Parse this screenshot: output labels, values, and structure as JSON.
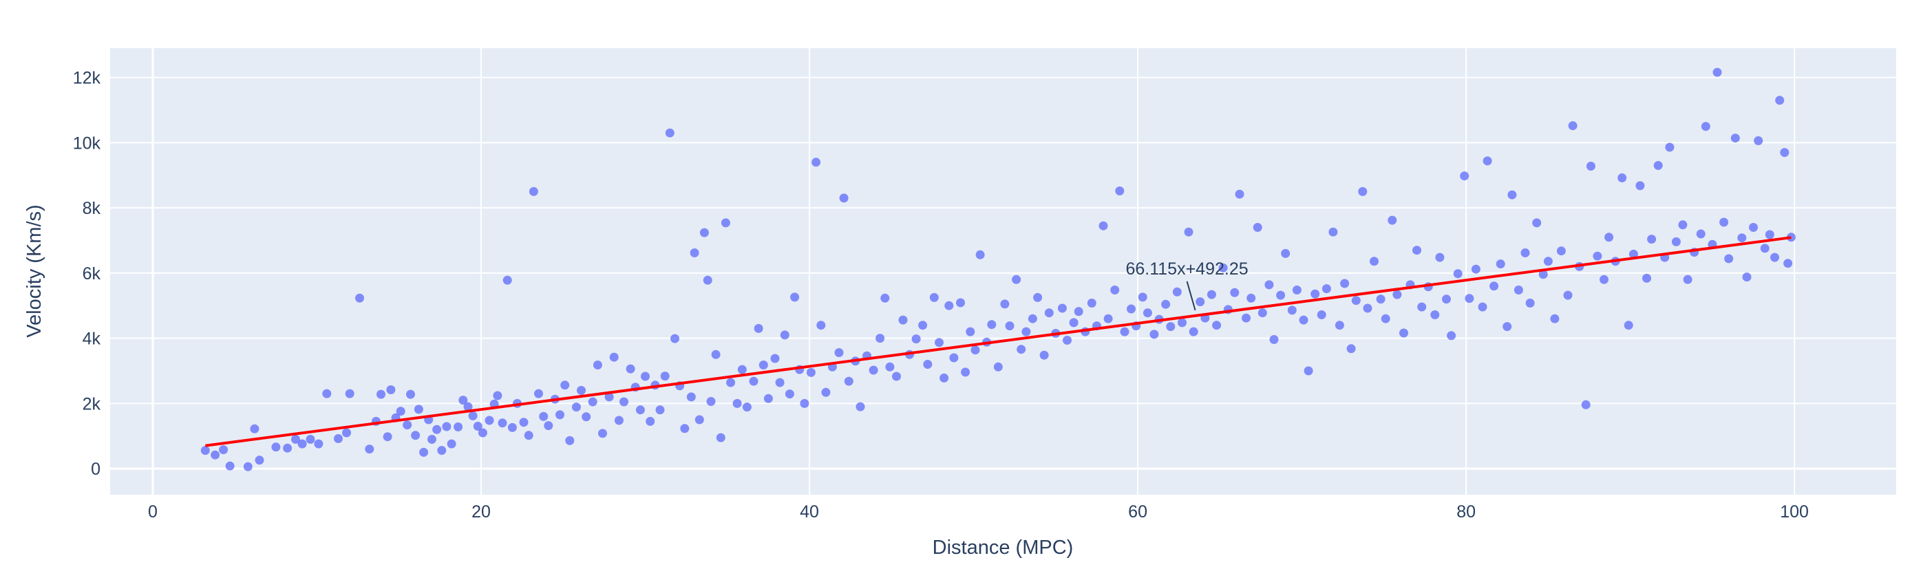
{
  "chart_data": {
    "type": "scatter",
    "title": "",
    "xlabel": "Distance (MPC)",
    "ylabel": "Velocity (Km/s)",
    "xlim": [
      -2.6,
      106.2
    ],
    "ylim": [
      -800,
      12900
    ],
    "xticks": [
      0,
      20,
      40,
      60,
      80,
      100
    ],
    "xtick_labels": [
      "0",
      "20",
      "40",
      "60",
      "80",
      "100"
    ],
    "yticks": [
      0,
      2000,
      4000,
      6000,
      8000,
      10000,
      12000
    ],
    "ytick_labels": [
      "0",
      "2k",
      "4k",
      "6k",
      "8k",
      "10k",
      "12k"
    ],
    "grid": true,
    "legend": "none",
    "colors": {
      "plot_bg": "#e5ecf6",
      "grid": "#ffffff",
      "marker": "#636efa",
      "fit_line": "#ff0000",
      "text": "#2a3f5f"
    },
    "series": [
      {
        "type": "scatter",
        "points": [
          [
            3.2,
            560
          ],
          [
            3.8,
            420
          ],
          [
            4.3,
            580
          ],
          [
            4.7,
            80
          ],
          [
            5.8,
            60
          ],
          [
            6.2,
            1220
          ],
          [
            6.5,
            260
          ],
          [
            7.5,
            660
          ],
          [
            8.2,
            630
          ],
          [
            8.7,
            900
          ],
          [
            9.1,
            760
          ],
          [
            9.6,
            900
          ],
          [
            10.1,
            760
          ],
          [
            10.6,
            2300
          ],
          [
            11.3,
            920
          ],
          [
            11.8,
            1100
          ],
          [
            12.0,
            2300
          ],
          [
            12.6,
            5230
          ],
          [
            13.2,
            600
          ],
          [
            13.6,
            1450
          ],
          [
            13.9,
            2280
          ],
          [
            14.3,
            980
          ],
          [
            14.5,
            2420
          ],
          [
            14.8,
            1560
          ],
          [
            15.1,
            1760
          ],
          [
            15.5,
            1340
          ],
          [
            15.7,
            2280
          ],
          [
            16.0,
            1020
          ],
          [
            16.2,
            1820
          ],
          [
            16.5,
            500
          ],
          [
            16.8,
            1500
          ],
          [
            17.0,
            900
          ],
          [
            17.3,
            1200
          ],
          [
            17.6,
            560
          ],
          [
            17.9,
            1290
          ],
          [
            18.2,
            760
          ],
          [
            18.6,
            1280
          ],
          [
            18.9,
            2100
          ],
          [
            19.2,
            1900
          ],
          [
            19.5,
            1620
          ],
          [
            19.8,
            1300
          ],
          [
            20.1,
            1100
          ],
          [
            20.5,
            1480
          ],
          [
            20.8,
            1980
          ],
          [
            21.0,
            2240
          ],
          [
            21.3,
            1400
          ],
          [
            21.6,
            5780
          ],
          [
            21.9,
            1260
          ],
          [
            22.2,
            2000
          ],
          [
            22.6,
            1420
          ],
          [
            22.9,
            1020
          ],
          [
            23.2,
            8500
          ],
          [
            23.5,
            2300
          ],
          [
            23.8,
            1600
          ],
          [
            24.1,
            1320
          ],
          [
            24.5,
            2130
          ],
          [
            24.8,
            1650
          ],
          [
            25.1,
            2560
          ],
          [
            25.4,
            860
          ],
          [
            25.8,
            1890
          ],
          [
            26.1,
            2400
          ],
          [
            26.4,
            1590
          ],
          [
            26.8,
            2050
          ],
          [
            27.1,
            3180
          ],
          [
            27.4,
            1080
          ],
          [
            27.8,
            2200
          ],
          [
            28.1,
            3420
          ],
          [
            28.4,
            1480
          ],
          [
            28.7,
            2050
          ],
          [
            29.1,
            3060
          ],
          [
            29.4,
            2500
          ],
          [
            29.7,
            1800
          ],
          [
            30.0,
            2830
          ],
          [
            30.3,
            1450
          ],
          [
            30.6,
            2560
          ],
          [
            30.9,
            1800
          ],
          [
            31.2,
            2840
          ],
          [
            31.5,
            10300
          ],
          [
            31.8,
            3990
          ],
          [
            32.1,
            2540
          ],
          [
            32.4,
            1230
          ],
          [
            32.8,
            2200
          ],
          [
            33.0,
            6620
          ],
          [
            33.3,
            1500
          ],
          [
            33.6,
            7240
          ],
          [
            33.8,
            5780
          ],
          [
            34.0,
            2060
          ],
          [
            34.3,
            3500
          ],
          [
            34.6,
            950
          ],
          [
            34.9,
            7540
          ],
          [
            35.2,
            2640
          ],
          [
            35.6,
            2000
          ],
          [
            35.9,
            3040
          ],
          [
            36.2,
            1890
          ],
          [
            36.6,
            2680
          ],
          [
            36.9,
            4300
          ],
          [
            37.2,
            3180
          ],
          [
            37.5,
            2150
          ],
          [
            37.9,
            3380
          ],
          [
            38.2,
            2640
          ],
          [
            38.5,
            4100
          ],
          [
            38.8,
            2290
          ],
          [
            39.1,
            5260
          ],
          [
            39.4,
            3040
          ],
          [
            39.7,
            2000
          ],
          [
            40.1,
            2950
          ],
          [
            40.4,
            9400
          ],
          [
            40.7,
            4400
          ],
          [
            41.0,
            2340
          ],
          [
            41.4,
            3120
          ],
          [
            41.8,
            3560
          ],
          [
            42.1,
            8300
          ],
          [
            42.4,
            2680
          ],
          [
            42.8,
            3300
          ],
          [
            43.1,
            1900
          ],
          [
            43.5,
            3460
          ],
          [
            43.9,
            3020
          ],
          [
            44.3,
            4000
          ],
          [
            44.6,
            5230
          ],
          [
            44.9,
            3120
          ],
          [
            45.3,
            2830
          ],
          [
            45.7,
            4560
          ],
          [
            46.1,
            3500
          ],
          [
            46.5,
            3980
          ],
          [
            46.9,
            4400
          ],
          [
            47.2,
            3200
          ],
          [
            47.6,
            5250
          ],
          [
            47.9,
            3870
          ],
          [
            48.2,
            2780
          ],
          [
            48.5,
            5000
          ],
          [
            48.8,
            3400
          ],
          [
            49.2,
            5090
          ],
          [
            49.5,
            2960
          ],
          [
            49.8,
            4200
          ],
          [
            50.1,
            3640
          ],
          [
            50.4,
            6560
          ],
          [
            50.8,
            3880
          ],
          [
            51.1,
            4420
          ],
          [
            51.5,
            3120
          ],
          [
            51.9,
            5050
          ],
          [
            52.2,
            4380
          ],
          [
            52.6,
            5800
          ],
          [
            52.9,
            3660
          ],
          [
            53.2,
            4200
          ],
          [
            53.6,
            4600
          ],
          [
            53.9,
            5250
          ],
          [
            54.3,
            3480
          ],
          [
            54.6,
            4780
          ],
          [
            55.0,
            4150
          ],
          [
            55.4,
            4920
          ],
          [
            55.7,
            3940
          ],
          [
            56.1,
            4480
          ],
          [
            56.4,
            4820
          ],
          [
            56.8,
            4200
          ],
          [
            57.2,
            5080
          ],
          [
            57.5,
            4380
          ],
          [
            57.9,
            7450
          ],
          [
            58.2,
            4600
          ],
          [
            58.6,
            5480
          ],
          [
            58.9,
            8520
          ],
          [
            59.2,
            4200
          ],
          [
            59.6,
            4900
          ],
          [
            59.9,
            4380
          ],
          [
            60.3,
            5260
          ],
          [
            60.6,
            4780
          ],
          [
            61.0,
            4120
          ],
          [
            61.3,
            4580
          ],
          [
            61.7,
            5040
          ],
          [
            62.0,
            4360
          ],
          [
            62.4,
            5420
          ],
          [
            62.7,
            4480
          ],
          [
            63.1,
            7260
          ],
          [
            63.4,
            4200
          ],
          [
            63.8,
            5120
          ],
          [
            64.1,
            4620
          ],
          [
            64.5,
            5340
          ],
          [
            64.8,
            4400
          ],
          [
            65.2,
            6160
          ],
          [
            65.5,
            4880
          ],
          [
            65.9,
            5400
          ],
          [
            66.2,
            8420
          ],
          [
            66.6,
            4620
          ],
          [
            66.9,
            5230
          ],
          [
            67.3,
            7400
          ],
          [
            67.6,
            4780
          ],
          [
            68.0,
            5640
          ],
          [
            68.3,
            3960
          ],
          [
            68.7,
            5320
          ],
          [
            69.0,
            6600
          ],
          [
            69.4,
            4860
          ],
          [
            69.7,
            5480
          ],
          [
            70.1,
            4560
          ],
          [
            70.4,
            3000
          ],
          [
            70.8,
            5360
          ],
          [
            71.2,
            4720
          ],
          [
            71.5,
            5520
          ],
          [
            71.9,
            7260
          ],
          [
            72.3,
            4400
          ],
          [
            72.6,
            5680
          ],
          [
            73.0,
            3680
          ],
          [
            73.3,
            5160
          ],
          [
            73.7,
            8500
          ],
          [
            74.0,
            4920
          ],
          [
            74.4,
            6360
          ],
          [
            74.8,
            5200
          ],
          [
            75.1,
            4600
          ],
          [
            75.5,
            7620
          ],
          [
            75.8,
            5340
          ],
          [
            76.2,
            4160
          ],
          [
            76.6,
            5640
          ],
          [
            77.0,
            6700
          ],
          [
            77.3,
            4960
          ],
          [
            77.7,
            5580
          ],
          [
            78.1,
            4720
          ],
          [
            78.4,
            6480
          ],
          [
            78.8,
            5200
          ],
          [
            79.1,
            4080
          ],
          [
            79.5,
            5980
          ],
          [
            79.9,
            8980
          ],
          [
            80.2,
            5220
          ],
          [
            80.6,
            6120
          ],
          [
            81.0,
            4960
          ],
          [
            81.3,
            9440
          ],
          [
            81.7,
            5600
          ],
          [
            82.1,
            6280
          ],
          [
            82.5,
            4360
          ],
          [
            82.8,
            8400
          ],
          [
            83.2,
            5480
          ],
          [
            83.6,
            6620
          ],
          [
            83.9,
            5080
          ],
          [
            84.3,
            7540
          ],
          [
            84.7,
            5960
          ],
          [
            85.0,
            6360
          ],
          [
            85.4,
            4600
          ],
          [
            85.8,
            6680
          ],
          [
            86.2,
            5320
          ],
          [
            86.5,
            10520
          ],
          [
            86.9,
            6200
          ],
          [
            87.3,
            1960
          ],
          [
            87.6,
            9280
          ],
          [
            88.0,
            6520
          ],
          [
            88.4,
            5800
          ],
          [
            88.7,
            7100
          ],
          [
            89.1,
            6360
          ],
          [
            89.5,
            8920
          ],
          [
            89.9,
            4400
          ],
          [
            90.2,
            6580
          ],
          [
            90.6,
            8680
          ],
          [
            91.0,
            5840
          ],
          [
            91.3,
            7040
          ],
          [
            91.7,
            9300
          ],
          [
            92.1,
            6480
          ],
          [
            92.4,
            9860
          ],
          [
            92.8,
            6960
          ],
          [
            93.2,
            7480
          ],
          [
            93.5,
            5800
          ],
          [
            93.9,
            6640
          ],
          [
            94.3,
            7200
          ],
          [
            94.6,
            10500
          ],
          [
            95.0,
            6880
          ],
          [
            95.3,
            12160
          ],
          [
            95.7,
            7560
          ],
          [
            96.0,
            6440
          ],
          [
            96.4,
            10140
          ],
          [
            96.8,
            7080
          ],
          [
            97.1,
            5880
          ],
          [
            97.5,
            7400
          ],
          [
            97.8,
            10060
          ],
          [
            98.2,
            6760
          ],
          [
            98.5,
            7180
          ],
          [
            98.8,
            6480
          ],
          [
            99.1,
            11300
          ],
          [
            99.4,
            9700
          ],
          [
            99.6,
            6300
          ],
          [
            99.8,
            7100
          ]
        ]
      },
      {
        "type": "line",
        "x": [
          3.2,
          99.8
        ],
        "y": [
          704,
          7091
        ]
      }
    ],
    "annotations": [
      {
        "text": "66.115x+492.25",
        "x": 63.5,
        "y": 4690
      }
    ]
  }
}
